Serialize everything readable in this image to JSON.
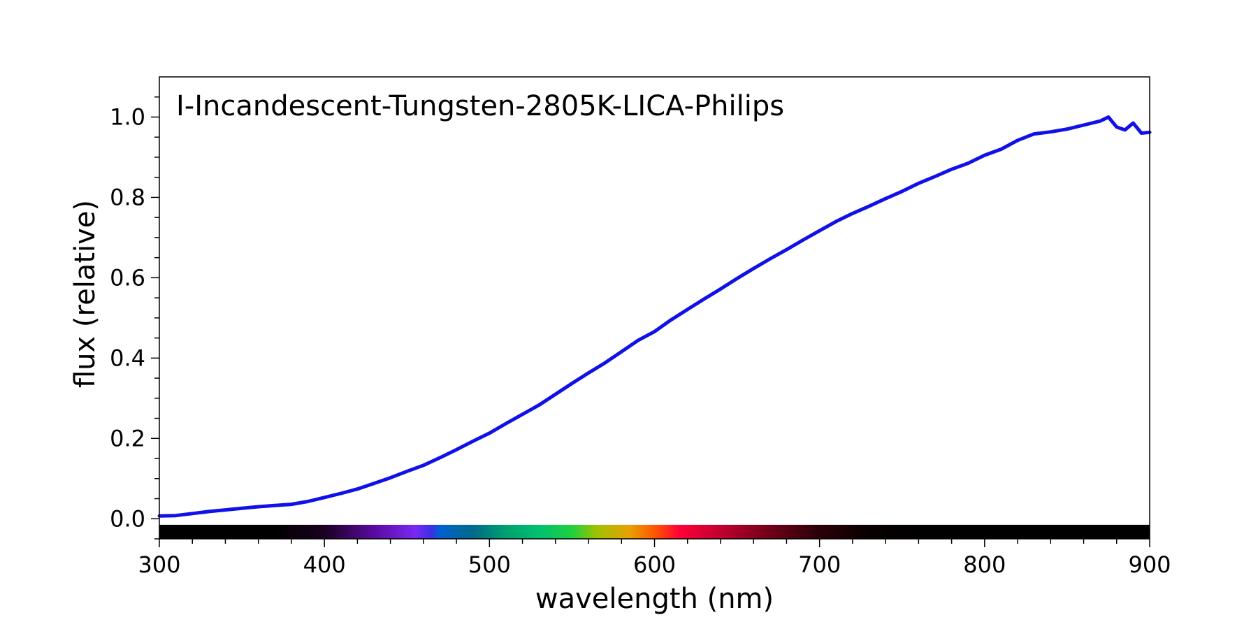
{
  "chart_data": {
    "type": "line",
    "title": "I-Incandescent-Tungsten-2805K-LICA-Philips",
    "xlabel": "wavelength (nm)",
    "ylabel": "flux (relative)",
    "xlim": [
      300,
      900
    ],
    "ylim": [
      -0.05,
      1.1
    ],
    "x_ticks": [
      300,
      400,
      500,
      600,
      700,
      800,
      900
    ],
    "x_tick_labels": [
      "300",
      "400",
      "500",
      "600",
      "700",
      "800",
      "900"
    ],
    "y_ticks": [
      0.0,
      0.2,
      0.4,
      0.6,
      0.8,
      1.0
    ],
    "y_tick_labels": [
      "0.0",
      "0.2",
      "0.4",
      "0.6",
      "0.8",
      "1.0"
    ],
    "grid": false,
    "legend": "none",
    "spectrum_band": {
      "y_range": [
        -0.05,
        -0.015
      ],
      "stops": [
        {
          "nm": 300,
          "color": "#000000"
        },
        {
          "nm": 370,
          "color": "#000000"
        },
        {
          "nm": 400,
          "color": "#1a0020"
        },
        {
          "nm": 430,
          "color": "#5a0aa0"
        },
        {
          "nm": 455,
          "color": "#7a28f0"
        },
        {
          "nm": 465,
          "color": "#3a30e6"
        },
        {
          "nm": 470,
          "color": "#0060d0"
        },
        {
          "nm": 490,
          "color": "#006a8a"
        },
        {
          "nm": 510,
          "color": "#00a070"
        },
        {
          "nm": 530,
          "color": "#00c070"
        },
        {
          "nm": 550,
          "color": "#20d040"
        },
        {
          "nm": 565,
          "color": "#a0c000"
        },
        {
          "nm": 585,
          "color": "#e8a000"
        },
        {
          "nm": 600,
          "color": "#ff5800"
        },
        {
          "nm": 615,
          "color": "#ff0038"
        },
        {
          "nm": 640,
          "color": "#c00030"
        },
        {
          "nm": 670,
          "color": "#700018"
        },
        {
          "nm": 700,
          "color": "#2a0008"
        },
        {
          "nm": 730,
          "color": "#080000"
        },
        {
          "nm": 760,
          "color": "#000000"
        },
        {
          "nm": 900,
          "color": "#000000"
        }
      ]
    },
    "series": [
      {
        "name": "I-Incandescent-Tungsten-2805K-LICA-Philips",
        "color": "#1010e8",
        "x": [
          300,
          310,
          320,
          330,
          340,
          350,
          360,
          370,
          380,
          390,
          400,
          410,
          420,
          430,
          440,
          450,
          460,
          470,
          480,
          490,
          500,
          510,
          520,
          530,
          540,
          550,
          560,
          570,
          580,
          590,
          600,
          610,
          620,
          630,
          640,
          650,
          660,
          670,
          680,
          690,
          700,
          710,
          720,
          730,
          740,
          750,
          760,
          770,
          780,
          790,
          800,
          810,
          820,
          830,
          840,
          850,
          860,
          870,
          875,
          880,
          885,
          890,
          895,
          900
        ],
        "y": [
          0.007,
          0.008,
          0.013,
          0.018,
          0.022,
          0.026,
          0.03,
          0.033,
          0.036,
          0.043,
          0.053,
          0.063,
          0.074,
          0.088,
          0.102,
          0.118,
          0.133,
          0.152,
          0.172,
          0.193,
          0.213,
          0.237,
          0.26,
          0.283,
          0.31,
          0.337,
          0.363,
          0.388,
          0.416,
          0.444,
          0.466,
          0.495,
          0.521,
          0.547,
          0.572,
          0.598,
          0.623,
          0.647,
          0.67,
          0.694,
          0.717,
          0.74,
          0.76,
          0.778,
          0.797,
          0.815,
          0.835,
          0.852,
          0.87,
          0.885,
          0.905,
          0.92,
          0.942,
          0.958,
          0.963,
          0.97,
          0.98,
          0.99,
          1.0,
          0.975,
          0.968,
          0.985,
          0.96,
          0.962
        ]
      }
    ]
  }
}
